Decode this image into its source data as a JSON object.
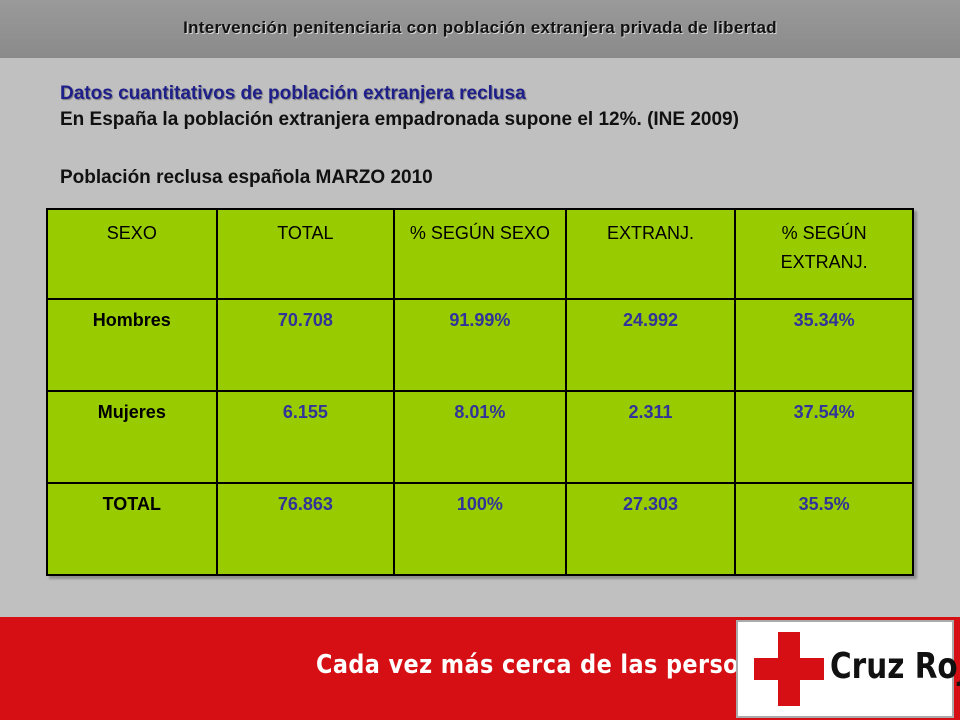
{
  "header": {
    "title": "Intervención penitenciaria con población extranjera privada de libertad"
  },
  "content": {
    "section_heading": "Datos cuantitativos de población extranjera reclusa",
    "intro_line": "En España la población extranjera empadronada supone el 12%. (INE 2009)",
    "table_caption": "Población reclusa española MARZO 2010"
  },
  "table": {
    "headers": [
      "SEXO",
      "TOTAL",
      "% SEGÚN SEXO",
      "EXTRANJ.",
      "% SEGÚN EXTRANJ."
    ],
    "rows": [
      {
        "label": "Hombres",
        "total": "70.708",
        "pct_sexo": "91.99%",
        "extranj": "24.992",
        "pct_extranj": "35.34%"
      },
      {
        "label": "Mujeres",
        "total": "6.155",
        "pct_sexo": "8.01%",
        "extranj": "2.311",
        "pct_extranj": "37.54%"
      },
      {
        "label": "TOTAL",
        "total": "76.863",
        "pct_sexo": "100%",
        "extranj": "27.303",
        "pct_extranj": "35.5%"
      }
    ]
  },
  "footer": {
    "tagline": "Cada vez más cerca de las personas",
    "logo_text": "Cruz Roja",
    "logo_icon": "red-cross-icon"
  },
  "colors": {
    "table_bg": "#99cc00",
    "value_text": "#333399",
    "footer_bg": "#d50f14",
    "heading_text": "#1f1f8a"
  }
}
